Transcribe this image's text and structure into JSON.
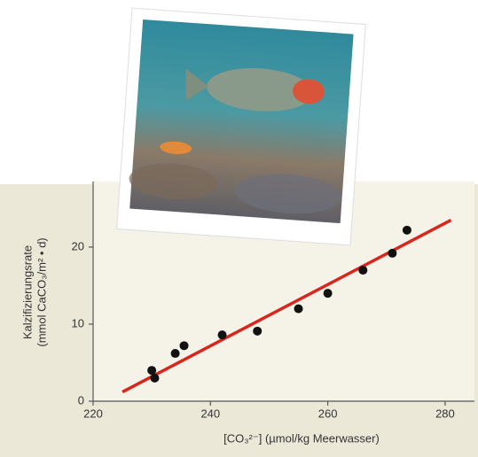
{
  "chart_data": {
    "type": "scatter",
    "x_label": "[CO₃²⁻] (µmol/kg Meerwasser)",
    "y_label": [
      "Kalzifizierungsrate",
      "(mmol CaCO₃/m² • d)"
    ],
    "x": [
      230,
      230.5,
      234,
      235.5,
      242,
      248,
      255,
      260,
      266,
      271,
      273.5
    ],
    "values": [
      4,
      3,
      6.2,
      7.2,
      8.6,
      9.1,
      12,
      14,
      17,
      19.2,
      22.2
    ],
    "color": "#111111",
    "fit": {
      "x": [
        225,
        281
      ],
      "values": [
        1.2,
        23.5
      ],
      "color": "#d9261c"
    },
    "xlim": [
      220,
      285
    ],
    "xticks": [
      220,
      240,
      260,
      280
    ],
    "ylim": [
      0,
      28.5
    ],
    "yticks": [
      0,
      10,
      20
    ],
    "grid": false
  }
}
